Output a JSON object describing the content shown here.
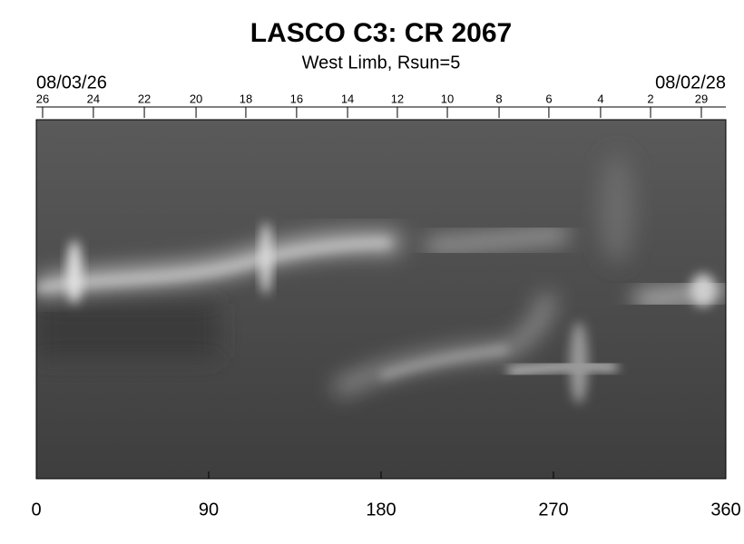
{
  "chart_data": {
    "type": "synoptic-map",
    "title": "LASCO C3: CR 2067",
    "subtitle": "West Limb, Rsun=5",
    "start_date": "08/03/26",
    "end_date": "08/02/28",
    "xlim": [
      0,
      360
    ],
    "xticks": [
      0,
      90,
      180,
      270,
      360
    ],
    "x2ticks": [
      {
        "value": 3.3,
        "label": "26"
      },
      {
        "value": 29.8,
        "label": "24"
      },
      {
        "value": 56.4,
        "label": "22"
      },
      {
        "value": 83.4,
        "label": "20"
      },
      {
        "value": 109.4,
        "label": "18"
      },
      {
        "value": 135.9,
        "label": "16"
      },
      {
        "value": 162.5,
        "label": "14"
      },
      {
        "value": 188.5,
        "label": "12"
      },
      {
        "value": 214.6,
        "label": "10"
      },
      {
        "value": 241.6,
        "label": "8"
      },
      {
        "value": 267.6,
        "label": "6"
      },
      {
        "value": 294.6,
        "label": "4"
      },
      {
        "value": 320.7,
        "label": "2"
      },
      {
        "value": 347.2,
        "label": "29"
      }
    ]
  }
}
